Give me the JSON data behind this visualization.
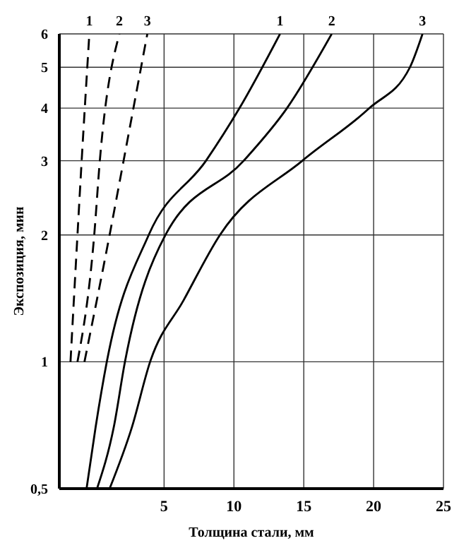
{
  "chart_data": {
    "type": "line",
    "xlabel": "Толщина стали, мм",
    "ylabel": "Экспозиция, мин",
    "log": "y",
    "xlim": [
      -2.5,
      25
    ],
    "xticks": [
      5,
      10,
      15,
      20,
      25
    ],
    "ylim": [
      0.5,
      6
    ],
    "yticks": [
      {
        "value": 0.5,
        "label": "0,5"
      },
      1,
      2,
      3,
      4,
      5,
      6
    ],
    "grid": true,
    "legend": false,
    "marker": "none",
    "series": [
      {
        "name": "1",
        "color": "#000000",
        "line_style": "dashed",
        "x": [
          -1.7,
          -1.2,
          -0.9,
          -0.35
        ],
        "values": [
          1,
          2,
          3,
          6
        ]
      },
      {
        "name": "2",
        "color": "#000000",
        "line_style": "dashed",
        "x": [
          -1.2,
          0,
          0.4,
          1.8
        ],
        "values": [
          1,
          2,
          3,
          6
        ]
      },
      {
        "name": "3",
        "color": "#000000",
        "line_style": "dashed",
        "x": [
          -0.7,
          1.1,
          2.1,
          3.8
        ],
        "values": [
          1,
          2,
          3,
          6
        ]
      },
      {
        "name": "1",
        "color": "#000000",
        "line_style": "solid",
        "x": [
          -0.55,
          0.1,
          0.9,
          3.9,
          8.0,
          10.4,
          13.3
        ],
        "values": [
          0.5,
          0.7,
          1,
          2,
          3,
          4,
          6
        ]
      },
      {
        "name": "2",
        "color": "#000000",
        "line_style": "solid",
        "x": [
          0.2,
          1.4,
          2.2,
          5.1,
          10.7,
          13.8,
          17.0
        ],
        "values": [
          0.5,
          0.7,
          1,
          2,
          3,
          4,
          6
        ]
      },
      {
        "name": "3",
        "color": "#000000",
        "line_style": "solid",
        "x": [
          1.1,
          2.7,
          4.0,
          6.4,
          9.0,
          14.9,
          19.7,
          22.6,
          23.5
        ],
        "values": [
          0.5,
          0.7,
          1,
          1.4,
          2,
          3,
          4,
          5,
          6
        ]
      }
    ]
  }
}
